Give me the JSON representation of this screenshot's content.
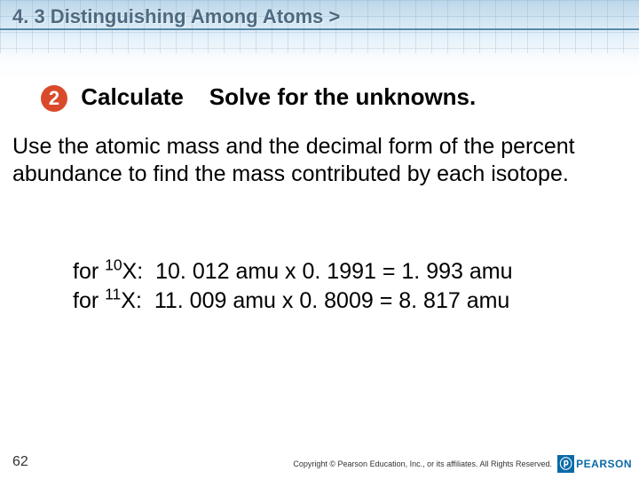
{
  "header": {
    "breadcrumb": "4. 3 Distinguishing Among Atoms >"
  },
  "step": {
    "number": "2",
    "circle_bg": "#d94a2a",
    "label": "Calculate",
    "text": "Solve for the unknowns."
  },
  "instruction": "Use the atomic mass and the decimal form of the percent abundance to find the mass contributed by each isotope.",
  "calculations": [
    {
      "prefix": "for ",
      "sup": "10",
      "symbol": "X:",
      "expr": "10. 012 amu x 0. 1991 = 1. 993 amu"
    },
    {
      "prefix": "for ",
      "sup": "11",
      "symbol": "X:",
      "expr": "11. 009 amu x 0. 8009 = 8. 817 amu"
    }
  ],
  "footer": {
    "page": "62",
    "copyright": "Copyright © Pearson Education, Inc., or its affiliates. All Rights Reserved.",
    "logo_text": "PEARSON"
  },
  "colors": {
    "breadcrumb_text": "#4d6a80",
    "nav_line": "#5889aa",
    "body_text": "#000000",
    "logo_blue": "#0a6aa8"
  }
}
